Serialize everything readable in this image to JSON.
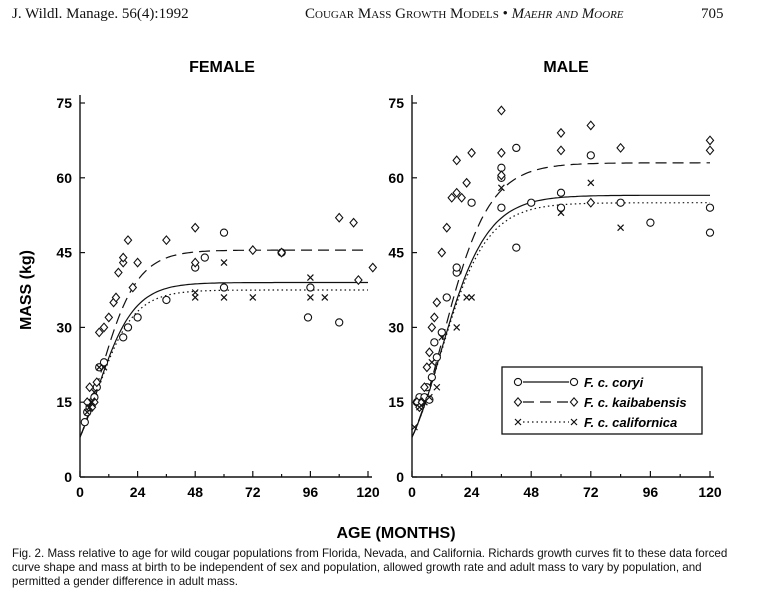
{
  "header": {
    "citation": "J. Wildl. Manage. 56(4):1992",
    "title": "Cougar Mass Growth Models",
    "separator": "•",
    "authors": "Maehr and Moore",
    "page_number": "705"
  },
  "chart_data": [
    {
      "type": "scatter",
      "title": "FEMALE",
      "xlabel": "AGE (MONTHS)",
      "ylabel": "MASS (kg)",
      "xlim": [
        0,
        120
      ],
      "ylim": [
        0,
        75
      ],
      "xticks": [
        0,
        24,
        48,
        72,
        96,
        120
      ],
      "yticks": [
        0,
        15,
        30,
        45,
        60,
        75
      ],
      "series": [
        {
          "name": "F. c. coryi",
          "marker": "circle",
          "line": "solid",
          "asymptote": 39,
          "points": [
            [
              2,
              11
            ],
            [
              3,
              13
            ],
            [
              4,
              14
            ],
            [
              5,
              15
            ],
            [
              6,
              16
            ],
            [
              7,
              18
            ],
            [
              8,
              22
            ],
            [
              10,
              23
            ],
            [
              18,
              28
            ],
            [
              20,
              30
            ],
            [
              24,
              32
            ],
            [
              36,
              35.5
            ],
            [
              48,
              42
            ],
            [
              60,
              38
            ],
            [
              52,
              44
            ],
            [
              60,
              49
            ],
            [
              84,
              45
            ],
            [
              95,
              32
            ],
            [
              96,
              38
            ],
            [
              108,
              31
            ]
          ]
        },
        {
          "name": "F. c. kaibabensis",
          "marker": "diamond",
          "line": "dashed",
          "asymptote": 45.5,
          "points": [
            [
              3,
              15
            ],
            [
              4,
              18
            ],
            [
              5,
              14
            ],
            [
              6,
              15
            ],
            [
              7,
              19
            ],
            [
              8,
              29
            ],
            [
              10,
              30
            ],
            [
              12,
              32
            ],
            [
              14,
              35
            ],
            [
              15,
              36
            ],
            [
              16,
              41
            ],
            [
              18,
              43
            ],
            [
              18,
              44
            ],
            [
              20,
              47.5
            ],
            [
              22,
              38
            ],
            [
              24,
              43
            ],
            [
              36,
              47.5
            ],
            [
              48,
              43
            ],
            [
              48,
              50
            ],
            [
              72,
              45.5
            ],
            [
              84,
              45
            ],
            [
              108,
              52
            ],
            [
              114,
              51
            ],
            [
              116,
              39.5
            ],
            [
              122,
              42
            ]
          ]
        },
        {
          "name": "F. c. californica",
          "marker": "x",
          "line": "dotted",
          "asymptote": 37.5,
          "points": [
            [
              3,
              13
            ],
            [
              4,
              14
            ],
            [
              5,
              15
            ],
            [
              6,
              17
            ],
            [
              8,
              22
            ],
            [
              10,
              22
            ],
            [
              48,
              37
            ],
            [
              48,
              36
            ],
            [
              60,
              36
            ],
            [
              60,
              43
            ],
            [
              72,
              36
            ],
            [
              96,
              36
            ],
            [
              96,
              40
            ],
            [
              102,
              36
            ]
          ]
        }
      ]
    },
    {
      "type": "scatter",
      "title": "MALE",
      "xlabel": "AGE (MONTHS)",
      "ylabel": "MASS (kg)",
      "xlim": [
        0,
        120
      ],
      "ylim": [
        0,
        75
      ],
      "xticks": [
        0,
        24,
        48,
        72,
        96,
        120
      ],
      "yticks": [
        0,
        15,
        30,
        45,
        60,
        75
      ],
      "series": [
        {
          "name": "F. c. coryi",
          "marker": "circle",
          "line": "solid",
          "asymptote": 56.5,
          "points": [
            [
              2,
              15
            ],
            [
              3,
              16
            ],
            [
              4,
              15
            ],
            [
              5,
              16
            ],
            [
              6,
              18
            ],
            [
              7,
              15.5
            ],
            [
              8,
              20
            ],
            [
              9,
              27
            ],
            [
              10,
              24
            ],
            [
              12,
              29
            ],
            [
              14,
              36
            ],
            [
              18,
              41
            ],
            [
              18,
              42
            ],
            [
              24,
              55
            ],
            [
              36,
              60
            ],
            [
              36,
              62
            ],
            [
              36,
              54
            ],
            [
              42,
              46
            ],
            [
              42,
              66
            ],
            [
              48,
              55
            ],
            [
              60,
              57
            ],
            [
              60,
              54
            ],
            [
              72,
              64.5
            ],
            [
              84,
              55
            ],
            [
              96,
              51
            ],
            [
              120,
              49
            ],
            [
              120,
              54
            ]
          ]
        },
        {
          "name": "F. c. kaibabensis",
          "marker": "diamond",
          "line": "dashed",
          "asymptote": 63,
          "points": [
            [
              2,
              15
            ],
            [
              3,
              14
            ],
            [
              4,
              15
            ],
            [
              5,
              18
            ],
            [
              6,
              22
            ],
            [
              7,
              25
            ],
            [
              8,
              30
            ],
            [
              9,
              32
            ],
            [
              10,
              35
            ],
            [
              12,
              45
            ],
            [
              14,
              50
            ],
            [
              16,
              56
            ],
            [
              18,
              57
            ],
            [
              18,
              63.5
            ],
            [
              20,
              56
            ],
            [
              22,
              59
            ],
            [
              24,
              65
            ],
            [
              36,
              73.5
            ],
            [
              36,
              65
            ],
            [
              36,
              60.5
            ],
            [
              60,
              69
            ],
            [
              60,
              65.5
            ],
            [
              72,
              70.5
            ],
            [
              72,
              55
            ],
            [
              84,
              66
            ],
            [
              120,
              67.5
            ],
            [
              120,
              65.5
            ]
          ]
        },
        {
          "name": "F. c. californica",
          "marker": "x",
          "line": "dotted",
          "asymptote": 55,
          "points": [
            [
              1,
              10
            ],
            [
              3,
              14
            ],
            [
              5,
              15
            ],
            [
              7,
              16
            ],
            [
              8,
              23
            ],
            [
              10,
              18
            ],
            [
              12,
              28
            ],
            [
              18,
              30
            ],
            [
              22,
              36
            ],
            [
              24,
              36
            ],
            [
              36,
              58
            ],
            [
              60,
              53
            ],
            [
              72,
              59
            ],
            [
              84,
              50
            ]
          ]
        }
      ]
    }
  ],
  "legend": [
    {
      "label": "F. c. coryi",
      "marker": "circle",
      "line": "solid"
    },
    {
      "label": "F. c. kaibabensis",
      "marker": "diamond",
      "line": "dashed"
    },
    {
      "label": "F. c. californica",
      "marker": "x",
      "line": "dotted"
    }
  ],
  "caption": "Fig. 2.  Mass relative to age for wild cougar populations from Florida, Nevada, and California. Richards growth curves fit to these data forced curve shape and mass at birth to be independent of sex and population, allowed growth rate and adult mass to vary by population, and permitted a gender difference in adult mass."
}
